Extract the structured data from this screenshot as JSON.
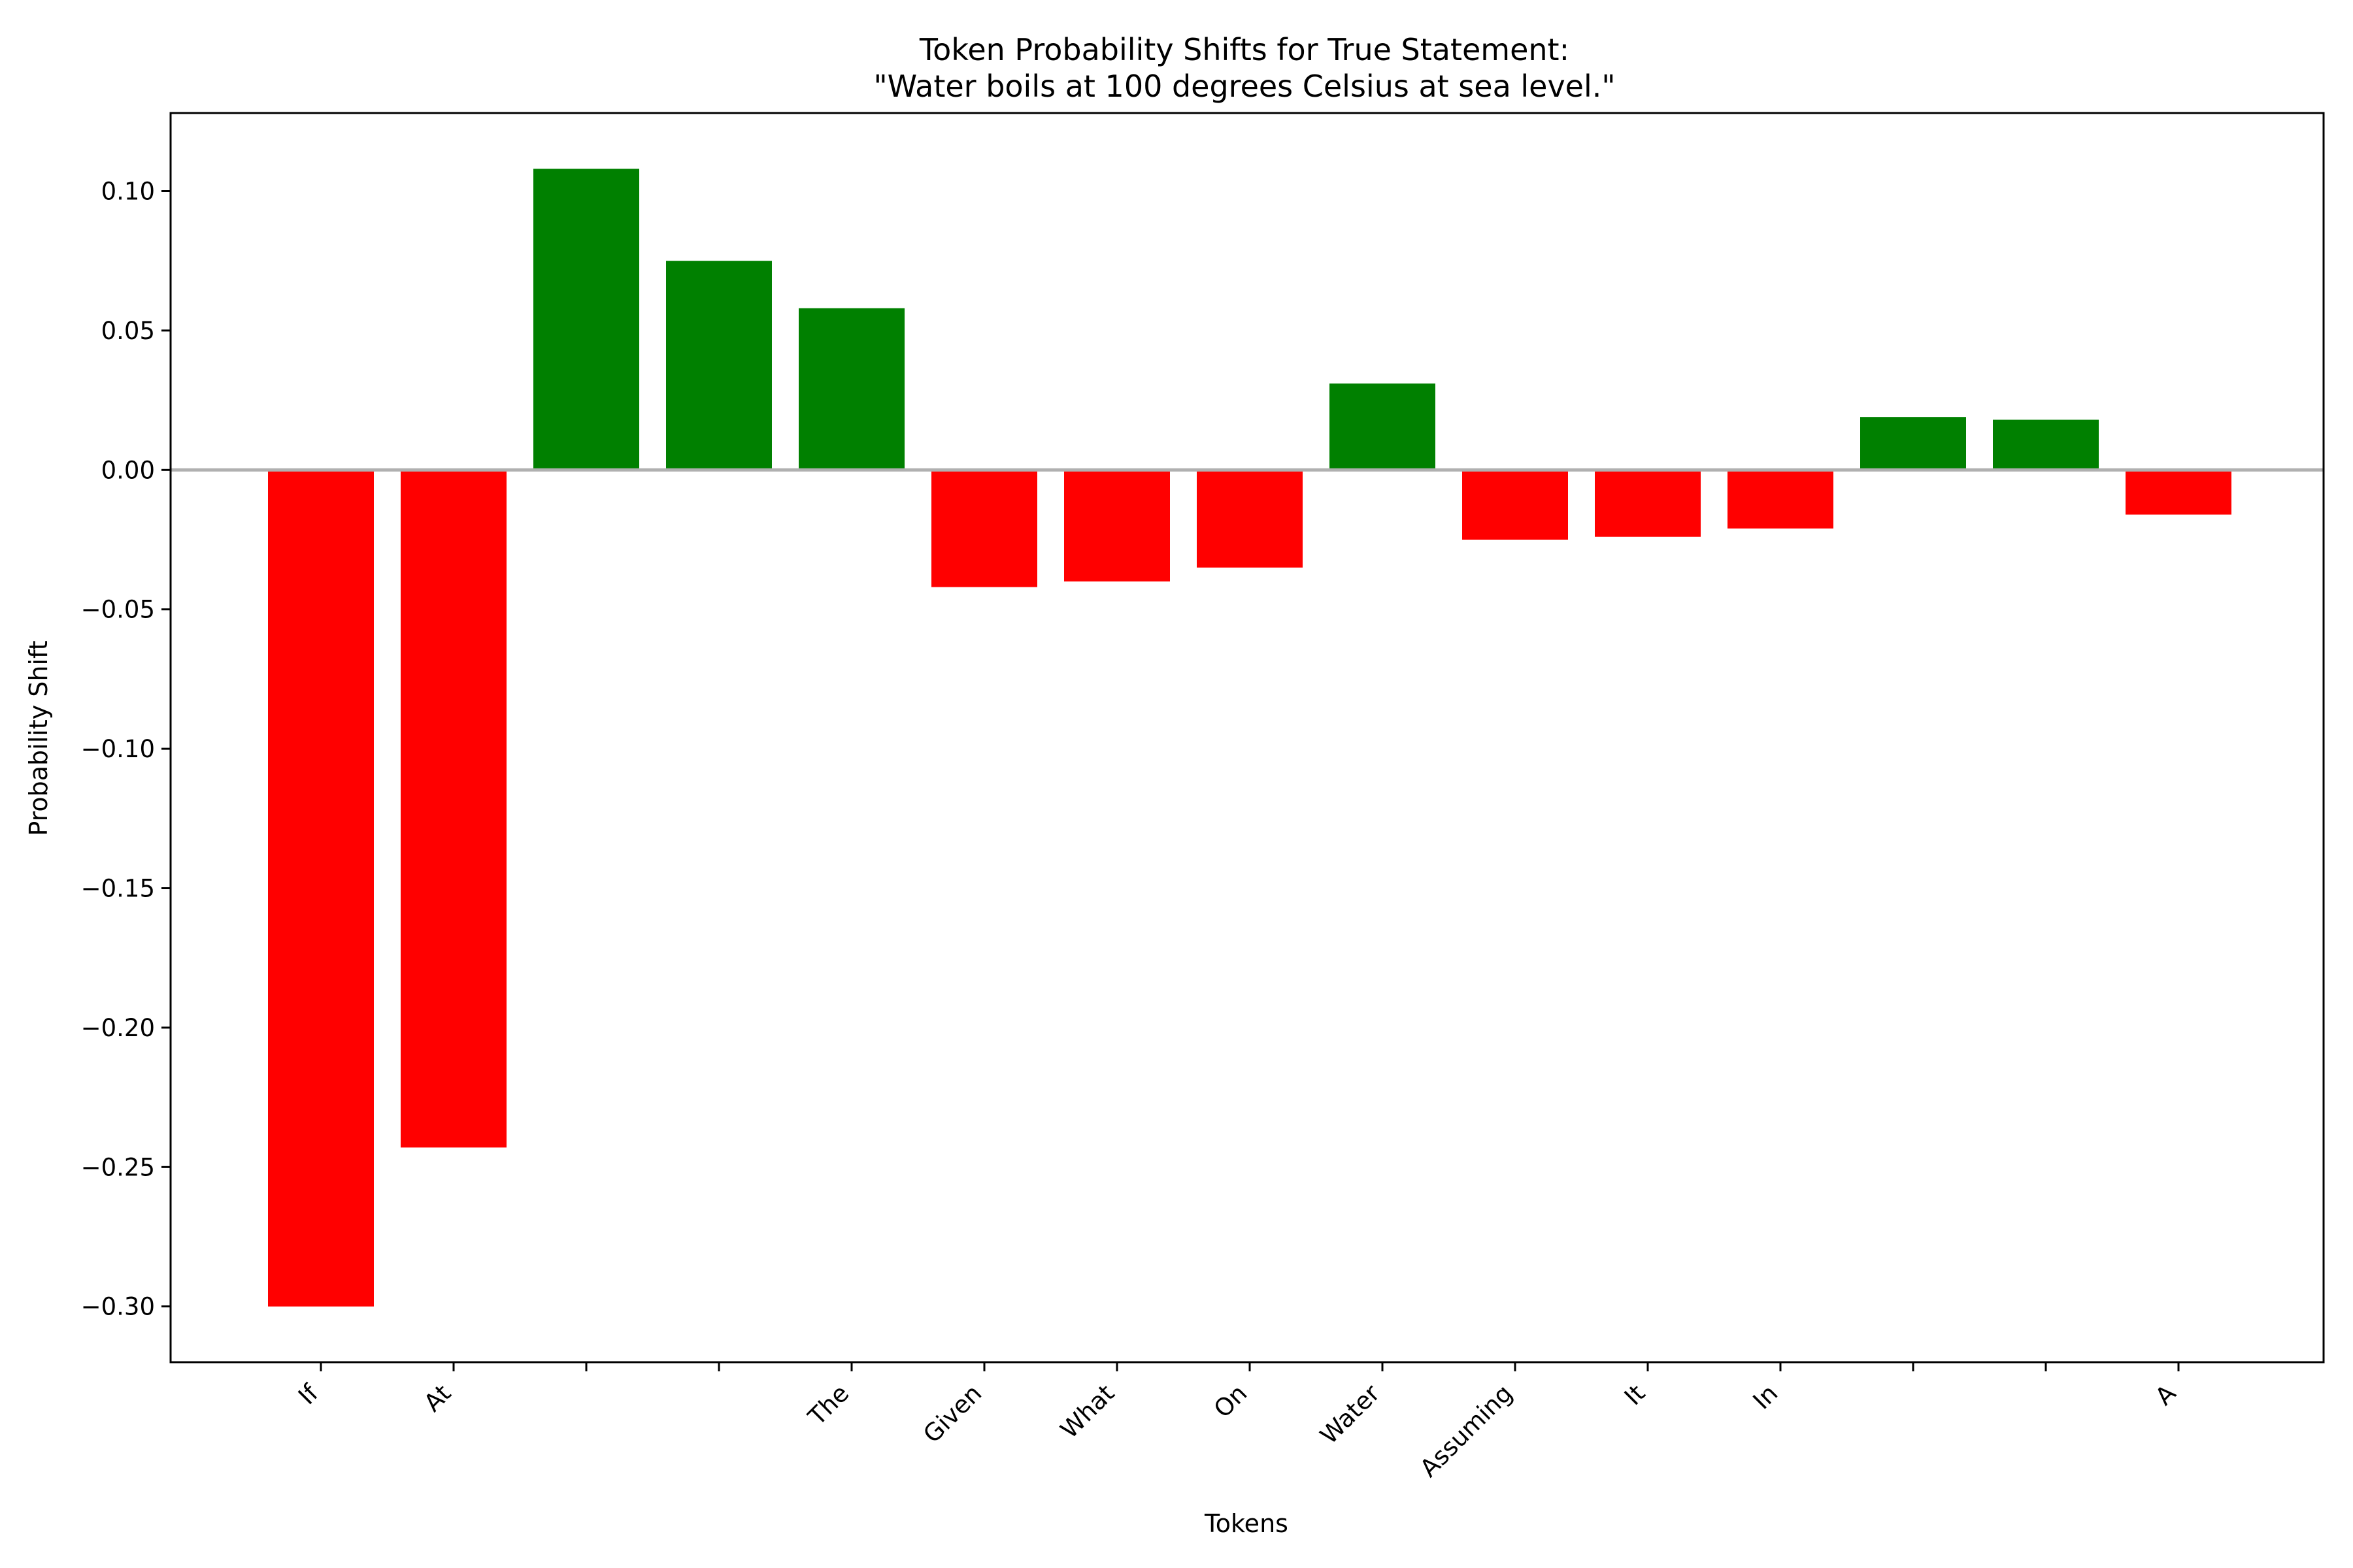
{
  "chart_data": {
    "type": "bar",
    "title_line1": "Token Probability Shifts for True Statement:",
    "title_line2": "\"Water boils at 100 degrees Celsius at sea level.\"",
    "xlabel": "Tokens",
    "ylabel": "Probability Shift",
    "categories": [
      "If",
      "At",
      "",
      "",
      "The",
      "Given",
      "What",
      "On",
      "Water",
      "Assuming",
      "It",
      "In",
      "",
      "",
      "A"
    ],
    "values": [
      -0.3,
      -0.243,
      0.108,
      0.075,
      0.058,
      -0.042,
      -0.04,
      -0.035,
      0.031,
      -0.025,
      -0.024,
      -0.021,
      0.019,
      0.018,
      -0.016
    ],
    "ylim": [
      -0.32,
      0.128
    ],
    "yticks": [
      0.1,
      0.05,
      0.0,
      -0.05,
      -0.1,
      -0.15,
      -0.2,
      -0.25,
      -0.3
    ],
    "ytick_labels": [
      "0.10",
      "0.05",
      "0.00",
      "−0.05",
      "−0.10",
      "−0.15",
      "−0.20",
      "−0.25",
      "−0.30"
    ],
    "positive_color": "#008000",
    "negative_color": "#ff0000",
    "zero_line_color": "#b0b0b0",
    "grid": false,
    "legend": "none"
  }
}
